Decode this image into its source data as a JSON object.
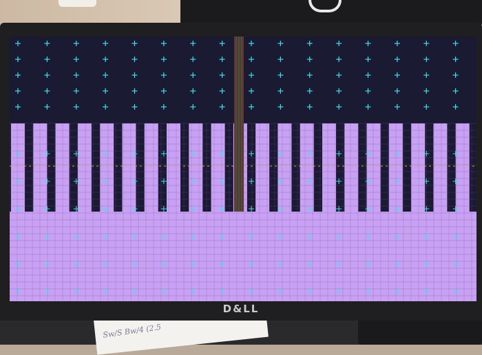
{
  "monitor": {
    "brand": "D&LL",
    "screen_colors": {
      "background": "#1b1a33",
      "panel": "#c9a1f4",
      "panel_line": "#6d4f95",
      "crosshair": "#3fe0ef",
      "center_line": "#d13a2f",
      "midline": "#e0a060"
    },
    "test_pattern": {
      "columns": 21,
      "crosshair_cols": 16,
      "crosshair_rows": 5
    }
  },
  "paper": {
    "note": "Sw/S Bw/4 (2.5"
  }
}
